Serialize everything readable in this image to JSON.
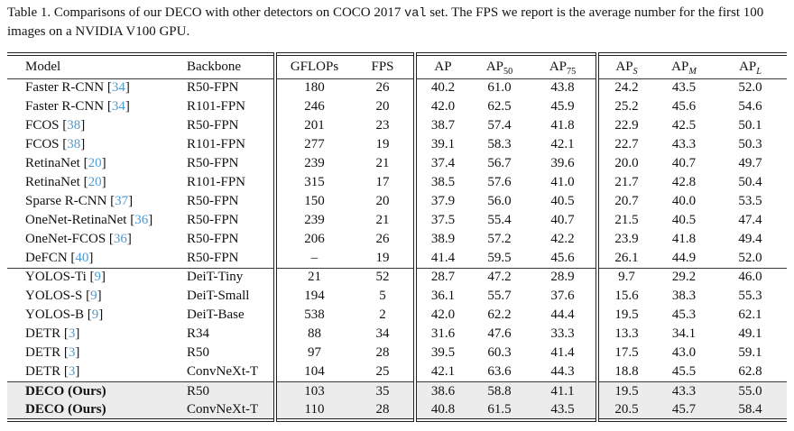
{
  "caption": {
    "segments": [
      {
        "text": "Table 1. Comparisons of our DECO with other detectors on COCO 2017 ",
        "style": "serif"
      },
      {
        "text": "val",
        "style": "mono"
      },
      {
        "text": " set. The FPS we report is the average number for the first 100 images on a NVIDIA V100 GPU.",
        "style": "serif"
      }
    ]
  },
  "colors": {
    "citation_link": "#4d9bd0",
    "highlight_row_bg": "#ececec",
    "rule": "#222222",
    "text": "#111111"
  },
  "table": {
    "headers": [
      {
        "label": "Model",
        "sub": "",
        "sub_italic": false
      },
      {
        "label": "Backbone",
        "sub": "",
        "sub_italic": false
      },
      {
        "label": "GFLOPs",
        "sub": "",
        "sub_italic": false
      },
      {
        "label": "FPS",
        "sub": "",
        "sub_italic": false
      },
      {
        "label": "AP",
        "sub": "",
        "sub_italic": false
      },
      {
        "label": "AP",
        "sub": "50",
        "sub_italic": false
      },
      {
        "label": "AP",
        "sub": "75",
        "sub_italic": false
      },
      {
        "label": "AP",
        "sub": "S",
        "sub_italic": true
      },
      {
        "label": "AP",
        "sub": "M",
        "sub_italic": true
      },
      {
        "label": "AP",
        "sub": "L",
        "sub_italic": true
      }
    ],
    "groups": [
      {
        "highlight": false,
        "rows": [
          {
            "model": "Faster R-CNN",
            "cite": "34",
            "bold": false,
            "backbone": "R50-FPN",
            "values": [
              "180",
              "26",
              "40.2",
              "61.0",
              "43.8",
              "24.2",
              "43.5",
              "52.0"
            ]
          },
          {
            "model": "Faster R-CNN",
            "cite": "34",
            "bold": false,
            "backbone": "R101-FPN",
            "values": [
              "246",
              "20",
              "42.0",
              "62.5",
              "45.9",
              "25.2",
              "45.6",
              "54.6"
            ]
          },
          {
            "model": "FCOS",
            "cite": "38",
            "bold": false,
            "backbone": "R50-FPN",
            "values": [
              "201",
              "23",
              "38.7",
              "57.4",
              "41.8",
              "22.9",
              "42.5",
              "50.1"
            ]
          },
          {
            "model": "FCOS",
            "cite": "38",
            "bold": false,
            "backbone": "R101-FPN",
            "values": [
              "277",
              "19",
              "39.1",
              "58.3",
              "42.1",
              "22.7",
              "43.3",
              "50.3"
            ]
          },
          {
            "model": "RetinaNet",
            "cite": "20",
            "bold": false,
            "backbone": "R50-FPN",
            "values": [
              "239",
              "21",
              "37.4",
              "56.7",
              "39.6",
              "20.0",
              "40.7",
              "49.7"
            ]
          },
          {
            "model": "RetinaNet",
            "cite": "20",
            "bold": false,
            "backbone": "R101-FPN",
            "values": [
              "315",
              "17",
              "38.5",
              "57.6",
              "41.0",
              "21.7",
              "42.8",
              "50.4"
            ]
          },
          {
            "model": "Sparse R-CNN",
            "cite": "37",
            "bold": false,
            "backbone": "R50-FPN",
            "values": [
              "150",
              "20",
              "37.9",
              "56.0",
              "40.5",
              "20.7",
              "40.0",
              "53.5"
            ]
          },
          {
            "model": "OneNet-RetinaNet",
            "cite": "36",
            "bold": false,
            "backbone": "R50-FPN",
            "values": [
              "239",
              "21",
              "37.5",
              "55.4",
              "40.7",
              "21.5",
              "40.5",
              "47.4"
            ]
          },
          {
            "model": "OneNet-FCOS",
            "cite": "36",
            "bold": false,
            "backbone": "R50-FPN",
            "values": [
              "206",
              "26",
              "38.9",
              "57.2",
              "42.2",
              "23.9",
              "41.8",
              "49.4"
            ]
          },
          {
            "model": "DeFCN",
            "cite": "40",
            "bold": false,
            "backbone": "R50-FPN",
            "values": [
              "–",
              "19",
              "41.4",
              "59.5",
              "45.6",
              "26.1",
              "44.9",
              "52.0"
            ]
          }
        ]
      },
      {
        "highlight": false,
        "rows": [
          {
            "model": "YOLOS-Ti",
            "cite": "9",
            "bold": false,
            "backbone": "DeiT-Tiny",
            "values": [
              "21",
              "52",
              "28.7",
              "47.2",
              "28.9",
              "9.7",
              "29.2",
              "46.0"
            ]
          },
          {
            "model": "YOLOS-S",
            "cite": "9",
            "bold": false,
            "backbone": "DeiT-Small",
            "values": [
              "194",
              "5",
              "36.1",
              "55.7",
              "37.6",
              "15.6",
              "38.3",
              "55.3"
            ]
          },
          {
            "model": "YOLOS-B",
            "cite": "9",
            "bold": false,
            "backbone": "DeiT-Base",
            "values": [
              "538",
              "2",
              "42.0",
              "62.2",
              "44.4",
              "19.5",
              "45.3",
              "62.1"
            ]
          },
          {
            "model": "DETR",
            "cite": "3",
            "bold": false,
            "backbone": "R34",
            "values": [
              "88",
              "34",
              "31.6",
              "47.6",
              "33.3",
              "13.3",
              "34.1",
              "49.1"
            ]
          },
          {
            "model": "DETR",
            "cite": "3",
            "bold": false,
            "backbone": "R50",
            "values": [
              "97",
              "28",
              "39.5",
              "60.3",
              "41.4",
              "17.5",
              "43.0",
              "59.1"
            ]
          },
          {
            "model": "DETR",
            "cite": "3",
            "bold": false,
            "backbone": "ConvNeXt-T",
            "values": [
              "104",
              "25",
              "42.1",
              "63.6",
              "44.3",
              "18.8",
              "45.5",
              "62.8"
            ]
          }
        ]
      },
      {
        "highlight": true,
        "rows": [
          {
            "model": "DECO (Ours)",
            "cite": "",
            "bold": true,
            "backbone": "R50",
            "values": [
              "103",
              "35",
              "38.6",
              "58.8",
              "41.1",
              "19.5",
              "43.3",
              "55.0"
            ]
          },
          {
            "model": "DECO (Ours)",
            "cite": "",
            "bold": true,
            "backbone": "ConvNeXt-T",
            "values": [
              "110",
              "28",
              "40.8",
              "61.5",
              "43.5",
              "20.5",
              "45.7",
              "58.4"
            ]
          }
        ]
      }
    ]
  }
}
